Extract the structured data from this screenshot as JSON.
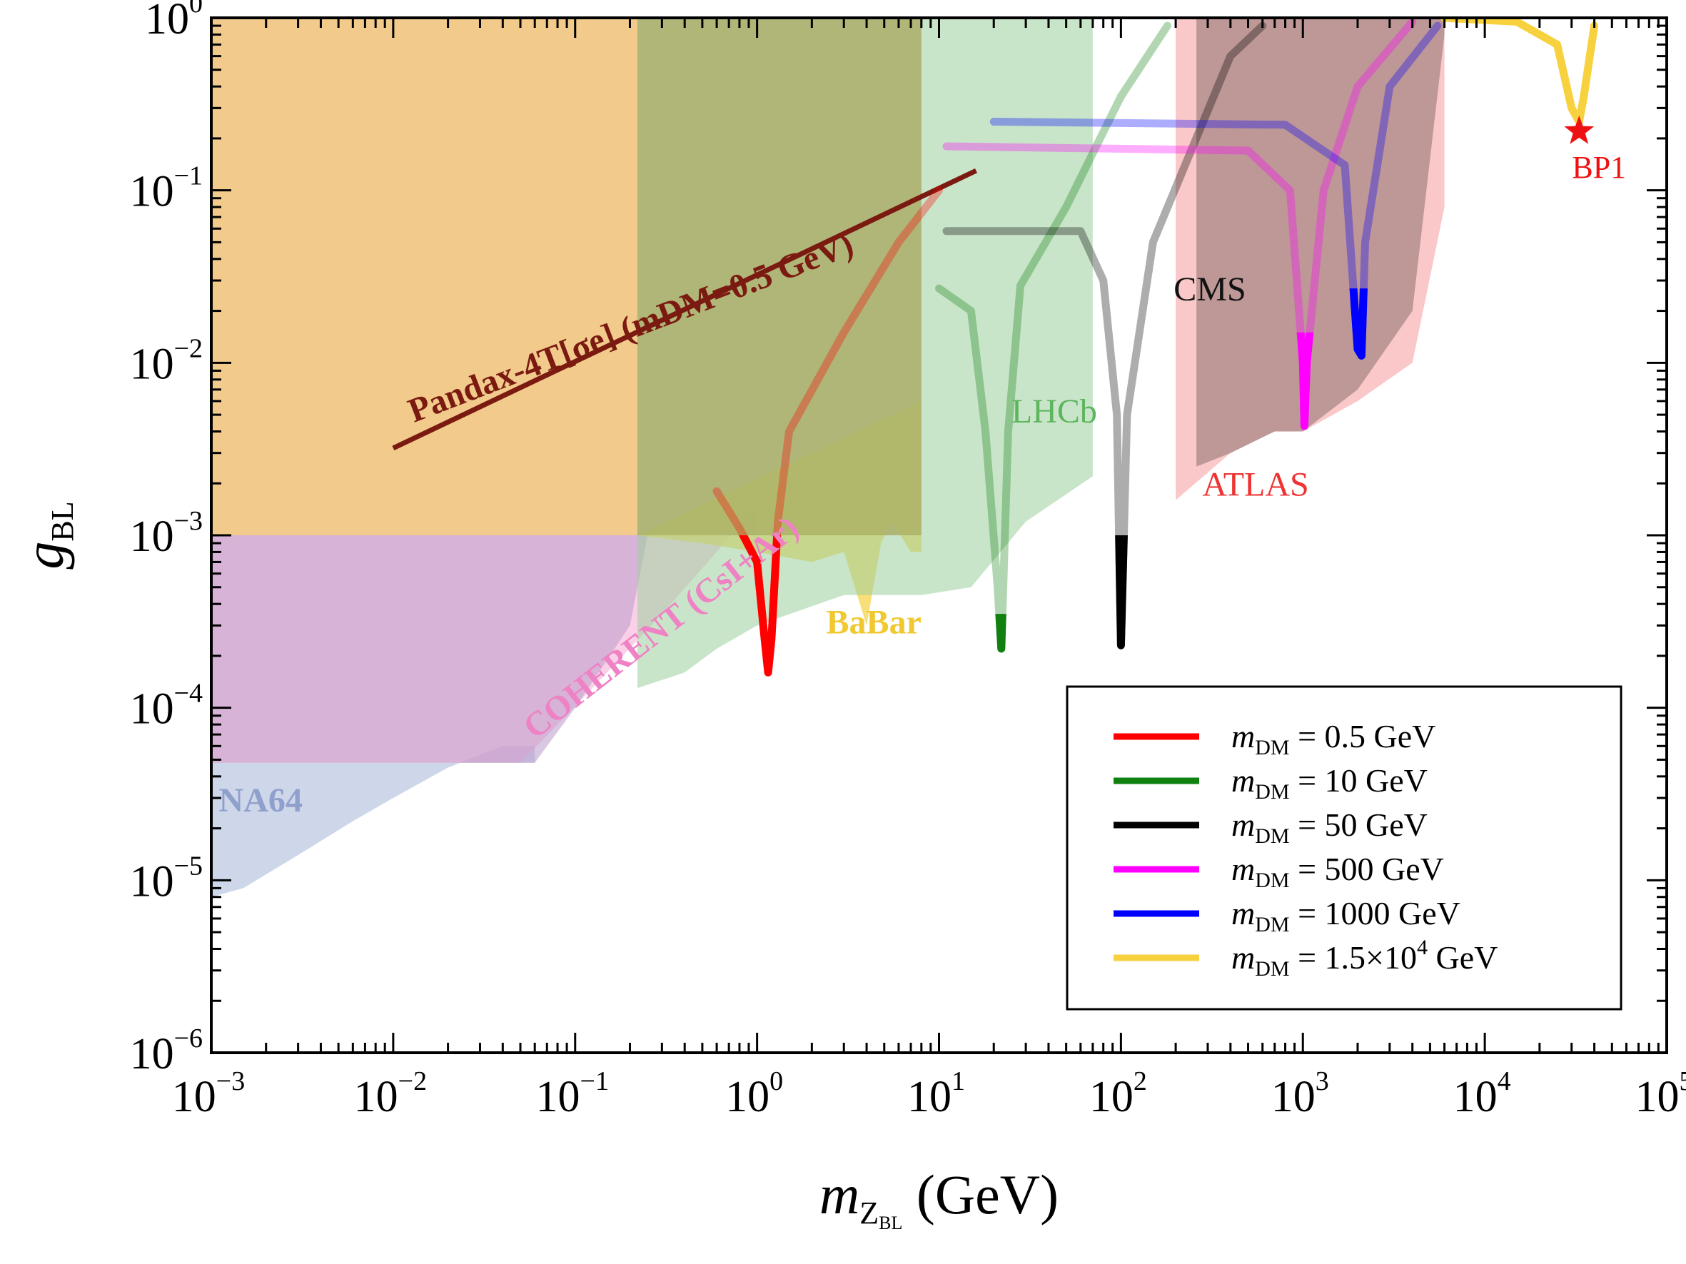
{
  "chart_data": {
    "type": "line",
    "title": "",
    "xlabel": "m_{Z_BL} (GeV)",
    "ylabel": "g_BL",
    "x_scale": "log",
    "y_scale": "log",
    "xlim": [
      0.001,
      100000
    ],
    "ylim": [
      1e-06,
      1
    ],
    "x_ticks": [
      {
        "value": 0.001,
        "base": "10",
        "exp": "−3"
      },
      {
        "value": 0.01,
        "base": "10",
        "exp": "−2"
      },
      {
        "value": 0.1,
        "base": "10",
        "exp": "−1"
      },
      {
        "value": 1,
        "base": "10",
        "exp": "0"
      },
      {
        "value": 10,
        "base": "10",
        "exp": "1"
      },
      {
        "value": 100,
        "base": "10",
        "exp": "2"
      },
      {
        "value": 1000,
        "base": "10",
        "exp": "3"
      },
      {
        "value": 10000,
        "base": "10",
        "exp": "4"
      },
      {
        "value": 100000,
        "base": "10",
        "exp": "5"
      }
    ],
    "y_ticks": [
      {
        "value": 1,
        "base": "10",
        "exp": "0"
      },
      {
        "value": 0.1,
        "base": "10",
        "exp": "−1"
      },
      {
        "value": 0.01,
        "base": "10",
        "exp": "−2"
      },
      {
        "value": 0.001,
        "base": "10",
        "exp": "−3"
      },
      {
        "value": 0.0001,
        "base": "10",
        "exp": "−4"
      },
      {
        "value": 1e-05,
        "base": "10",
        "exp": "−5"
      },
      {
        "value": 1e-06,
        "base": "10",
        "exp": "−6"
      }
    ],
    "regions": [
      {
        "name": "NA64",
        "label": "NA64",
        "color": "#a6b6d9",
        "opacity": 0.55,
        "label_at": [
          0.0011,
          2.5e-05
        ],
        "label_color": "#8fa0cc",
        "points": [
          [
            0.001,
            8e-06
          ],
          [
            0.0015,
            9e-06
          ],
          [
            0.003,
            1.4e-05
          ],
          [
            0.006,
            2.2e-05
          ],
          [
            0.01,
            3e-05
          ],
          [
            0.02,
            4.5e-05
          ],
          [
            0.04,
            6e-05
          ],
          [
            0.06,
            6e-05
          ],
          [
            0.06,
            4.8e-05
          ],
          [
            0.001,
            4.8e-05
          ]
        ]
      },
      {
        "name": "COHERENT",
        "label": "COHERENT (CsI+Ar)",
        "color": "#f6aad6",
        "opacity": 0.55,
        "label_at": [
          0.06,
          6.5e-05
        ],
        "label_rotate": -38,
        "label_color": "#ee82c4",
        "points": [
          [
            0.05,
            4.8e-05
          ],
          [
            0.08,
            8e-05
          ],
          [
            0.15,
            0.00016
          ],
          [
            0.3,
            0.00035
          ],
          [
            0.6,
            0.0008
          ],
          [
            1,
            0.0015
          ],
          [
            1,
            0.001
          ],
          [
            0.001,
            0.001
          ],
          [
            0.001,
            4.8e-05
          ]
        ]
      },
      {
        "name": "Purple-band",
        "label": "",
        "color": "#b99ac9",
        "opacity": 0.55,
        "points": [
          [
            0.001,
            4.8e-05
          ],
          [
            0.06,
            4.8e-05
          ],
          [
            0.1,
            0.0001
          ],
          [
            0.2,
            0.0003
          ],
          [
            0.25,
            0.001
          ],
          [
            0.001,
            0.001
          ]
        ]
      },
      {
        "name": "Beam-dump-orange",
        "label": "",
        "color": "#e8a640",
        "opacity": 0.6,
        "points": [
          [
            0.001,
            0.001
          ],
          [
            8,
            0.001
          ],
          [
            8,
            1
          ],
          [
            0.001,
            1
          ]
        ]
      },
      {
        "name": "BaBar",
        "label": "BaBar",
        "color": "#f5d44e",
        "opacity": 0.75,
        "label_at": [
          2.4,
          0.00027
        ],
        "label_color": "#f0c830",
        "points": [
          [
            0.22,
            0.001
          ],
          [
            0.5,
            0.0009
          ],
          [
            1,
            0.0008
          ],
          [
            2,
            0.0007
          ],
          [
            3,
            0.0008
          ],
          [
            4,
            0.0003
          ],
          [
            4.8,
            0.0009
          ],
          [
            5.5,
            0.0012
          ],
          [
            7,
            0.0008
          ],
          [
            8,
            0.0008
          ],
          [
            8,
            0.006
          ],
          [
            0.22,
            0.001
          ]
        ]
      },
      {
        "name": "LHCb",
        "label": "LHCb",
        "color": "#9ccf9c",
        "opacity": 0.55,
        "label_at": [
          25,
          0.0045
        ],
        "label_color": "#5db55d",
        "points": [
          [
            0.22,
            0.00013
          ],
          [
            0.4,
            0.00016
          ],
          [
            0.6,
            0.00022
          ],
          [
            1,
            0.0003
          ],
          [
            3,
            0.00045
          ],
          [
            8,
            0.00045
          ],
          [
            15,
            0.0005
          ],
          [
            30,
            0.0012
          ],
          [
            70,
            0.0022
          ],
          [
            70,
            1
          ],
          [
            0.22,
            1
          ]
        ]
      },
      {
        "name": "Dark-olive",
        "label": "",
        "color": "#9a9a55",
        "opacity": 0.45,
        "points": [
          [
            0.22,
            0.001
          ],
          [
            8,
            0.001
          ],
          [
            8,
            1
          ],
          [
            0.22,
            1
          ]
        ]
      },
      {
        "name": "ATLAS",
        "label": "ATLAS",
        "color": "#f7aaaa",
        "opacity": 0.65,
        "label_at": [
          280,
          0.0017
        ],
        "label_color": "#ee3333",
        "points": [
          [
            200,
            0.0016
          ],
          [
            400,
            0.003
          ],
          [
            700,
            0.004
          ],
          [
            1000,
            0.004
          ],
          [
            2000,
            0.006
          ],
          [
            4000,
            0.01
          ],
          [
            6000,
            0.08
          ],
          [
            6000,
            1
          ],
          [
            200,
            1
          ]
        ]
      },
      {
        "name": "CMS",
        "label": "CMS",
        "color": "#8c6f6f",
        "opacity": 0.55,
        "label_at": [
          195,
          0.023
        ],
        "label_color": "#111111",
        "points": [
          [
            260,
            0.0025
          ],
          [
            400,
            0.003
          ],
          [
            700,
            0.004
          ],
          [
            1000,
            0.004
          ],
          [
            2000,
            0.007
          ],
          [
            4000,
            0.02
          ],
          [
            6000,
            0.8
          ],
          [
            6000,
            1
          ],
          [
            260,
            1
          ]
        ]
      }
    ],
    "bounds": [
      {
        "name": "Pandax-4T",
        "label": "Pandax-4T[σe] (mDM=0.5 GeV)",
        "color": "#7a1a10",
        "width": 7,
        "label_at": [
          0.013,
          0.0045
        ],
        "label_rotate": -21,
        "points": [
          [
            0.01,
            0.0032
          ],
          [
            16,
            0.13
          ]
        ]
      }
    ],
    "series": [
      {
        "name": "mDM = 0.5 GeV",
        "color": "#ff0000",
        "points": [
          [
            0.6,
            0.0018
          ],
          [
            0.8,
            0.0011
          ],
          [
            1,
            0.0007
          ],
          [
            1.1,
            0.00025
          ],
          [
            1.15,
            0.00016
          ],
          [
            1.2,
            0.00025
          ],
          [
            1.3,
            0.0012
          ],
          [
            1.5,
            0.004
          ],
          [
            3,
            0.015
          ],
          [
            6,
            0.05
          ],
          [
            10,
            0.1
          ]
        ],
        "faded_above": 0.001
      },
      {
        "name": "mDM = 10 GeV",
        "color": "#108010",
        "points": [
          [
            10,
            0.027
          ],
          [
            15,
            0.02
          ],
          [
            18,
            0.004
          ],
          [
            21,
            0.0005
          ],
          [
            22,
            0.00022
          ],
          [
            24,
            0.004
          ],
          [
            28,
            0.028
          ],
          [
            50,
            0.08
          ],
          [
            100,
            0.35
          ],
          [
            180,
            0.9
          ]
        ],
        "faded_above": 0.00035
      },
      {
        "name": "mDM = 50 GeV",
        "color": "#000000",
        "points": [
          [
            11,
            0.058
          ],
          [
            60,
            0.058
          ],
          [
            80,
            0.03
          ],
          [
            95,
            0.005
          ],
          [
            100,
            0.00023
          ],
          [
            108,
            0.005
          ],
          [
            150,
            0.05
          ],
          [
            400,
            0.6
          ],
          [
            600,
            0.9
          ]
        ],
        "faded_above": 0.001
      },
      {
        "name": "mDM = 500 GeV",
        "color": "#ff00ff",
        "points": [
          [
            11,
            0.18
          ],
          [
            500,
            0.17
          ],
          [
            850,
            0.1
          ],
          [
            1000,
            0.01
          ],
          [
            1020,
            0.0043
          ],
          [
            1050,
            0.01
          ],
          [
            1300,
            0.1
          ],
          [
            2000,
            0.4
          ],
          [
            4000,
            0.95
          ]
        ],
        "faded_above": 0.015
      },
      {
        "name": "mDM = 1000 GeV",
        "color": "#0000ff",
        "points": [
          [
            20,
            0.25
          ],
          [
            800,
            0.24
          ],
          [
            1700,
            0.14
          ],
          [
            2000,
            0.012
          ],
          [
            2100,
            0.011
          ],
          [
            2200,
            0.05
          ],
          [
            3000,
            0.4
          ],
          [
            5500,
            0.9
          ]
        ],
        "faded_above": 0.027
      },
      {
        "name": "mDM = 1.5×10^4 GeV",
        "color": "#f7d23e",
        "points": [
          [
            6000,
            1
          ],
          [
            15000,
            0.95
          ],
          [
            25000,
            0.7
          ],
          [
            30000,
            0.3
          ],
          [
            33000,
            0.25
          ],
          [
            35000,
            0.35
          ],
          [
            40000,
            0.9
          ]
        ],
        "faded_above": 2
      }
    ],
    "benchmark": {
      "name": "BP1",
      "label": "BP1",
      "x": 33000,
      "y": 0.22,
      "color": "#ee1111"
    },
    "legend": {
      "placement": "lower-right",
      "entries": [
        {
          "prefix": "m",
          "sub": "DM",
          "text": " = 0.5 GeV",
          "sup": "",
          "tail": "",
          "color": "#ff0000"
        },
        {
          "prefix": "m",
          "sub": "DM",
          "text": " = 10 GeV",
          "sup": "",
          "tail": "",
          "color": "#108010"
        },
        {
          "prefix": "m",
          "sub": "DM",
          "text": " = 50 GeV",
          "sup": "",
          "tail": "",
          "color": "#000000"
        },
        {
          "prefix": "m",
          "sub": "DM",
          "text": " = 500 GeV",
          "sup": "",
          "tail": "",
          "color": "#ff00ff"
        },
        {
          "prefix": "m",
          "sub": "DM",
          "text": " = 1000 GeV",
          "sup": "",
          "tail": "",
          "color": "#0000ff"
        },
        {
          "prefix": "m",
          "sub": "DM",
          "text": " = 1.5×10",
          "sup": "4",
          "tail": " GeV",
          "color": "#f7d23e"
        }
      ]
    },
    "axis_text": {
      "x_main": "m",
      "x_sub": "Z",
      "x_subsub": "BL",
      "x_unit": " (GeV)",
      "y_main": "g",
      "y_sub": "BL"
    },
    "grid": false
  }
}
